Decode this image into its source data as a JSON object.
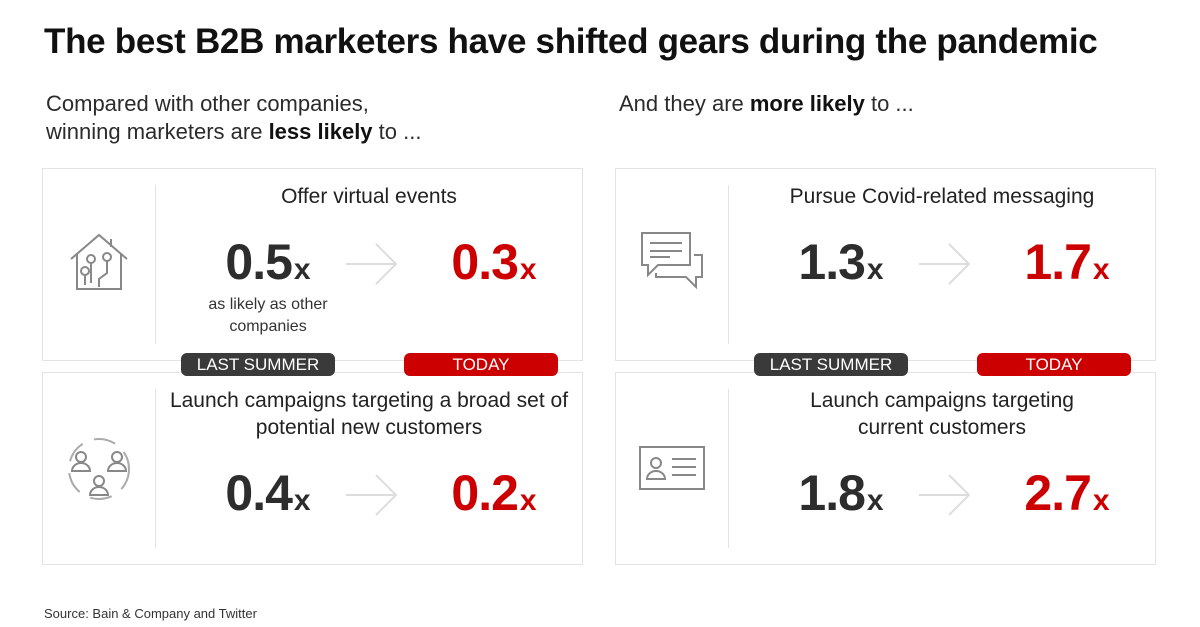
{
  "title": "The best B2B marketers have shifted gears during the pandemic",
  "columns": [
    {
      "intro": {
        "lines": [
          "Compared with other companies,",
          "winning marketers are"
        ],
        "emphasis": "less likely",
        "tail": "to ..."
      },
      "badges": {
        "before": "LAST SUMMER",
        "after": "TODAY"
      },
      "cards": [
        {
          "label": "Offer virtual events",
          "before": "0.5",
          "after": "0.3",
          "unit": "x",
          "note": "as likely as other companies"
        },
        {
          "label": "Launch campaigns targeting a broad set of potential new customers",
          "before": "0.4",
          "after": "0.2",
          "unit": "x"
        }
      ]
    },
    {
      "intro": {
        "lines": [
          "And they are"
        ],
        "emphasis": "more likely",
        "tail": "to ..."
      },
      "badges": {
        "before": "LAST SUMMER",
        "after": "TODAY"
      },
      "cards": [
        {
          "label": "Pursue Covid-related messaging",
          "before": "1.3",
          "after": "1.7",
          "unit": "x"
        },
        {
          "label": "Launch campaigns targeting current customers",
          "before": "1.8",
          "after": "2.7",
          "unit": "x"
        }
      ]
    }
  ],
  "source": "Source: Bain & Company and Twitter"
}
